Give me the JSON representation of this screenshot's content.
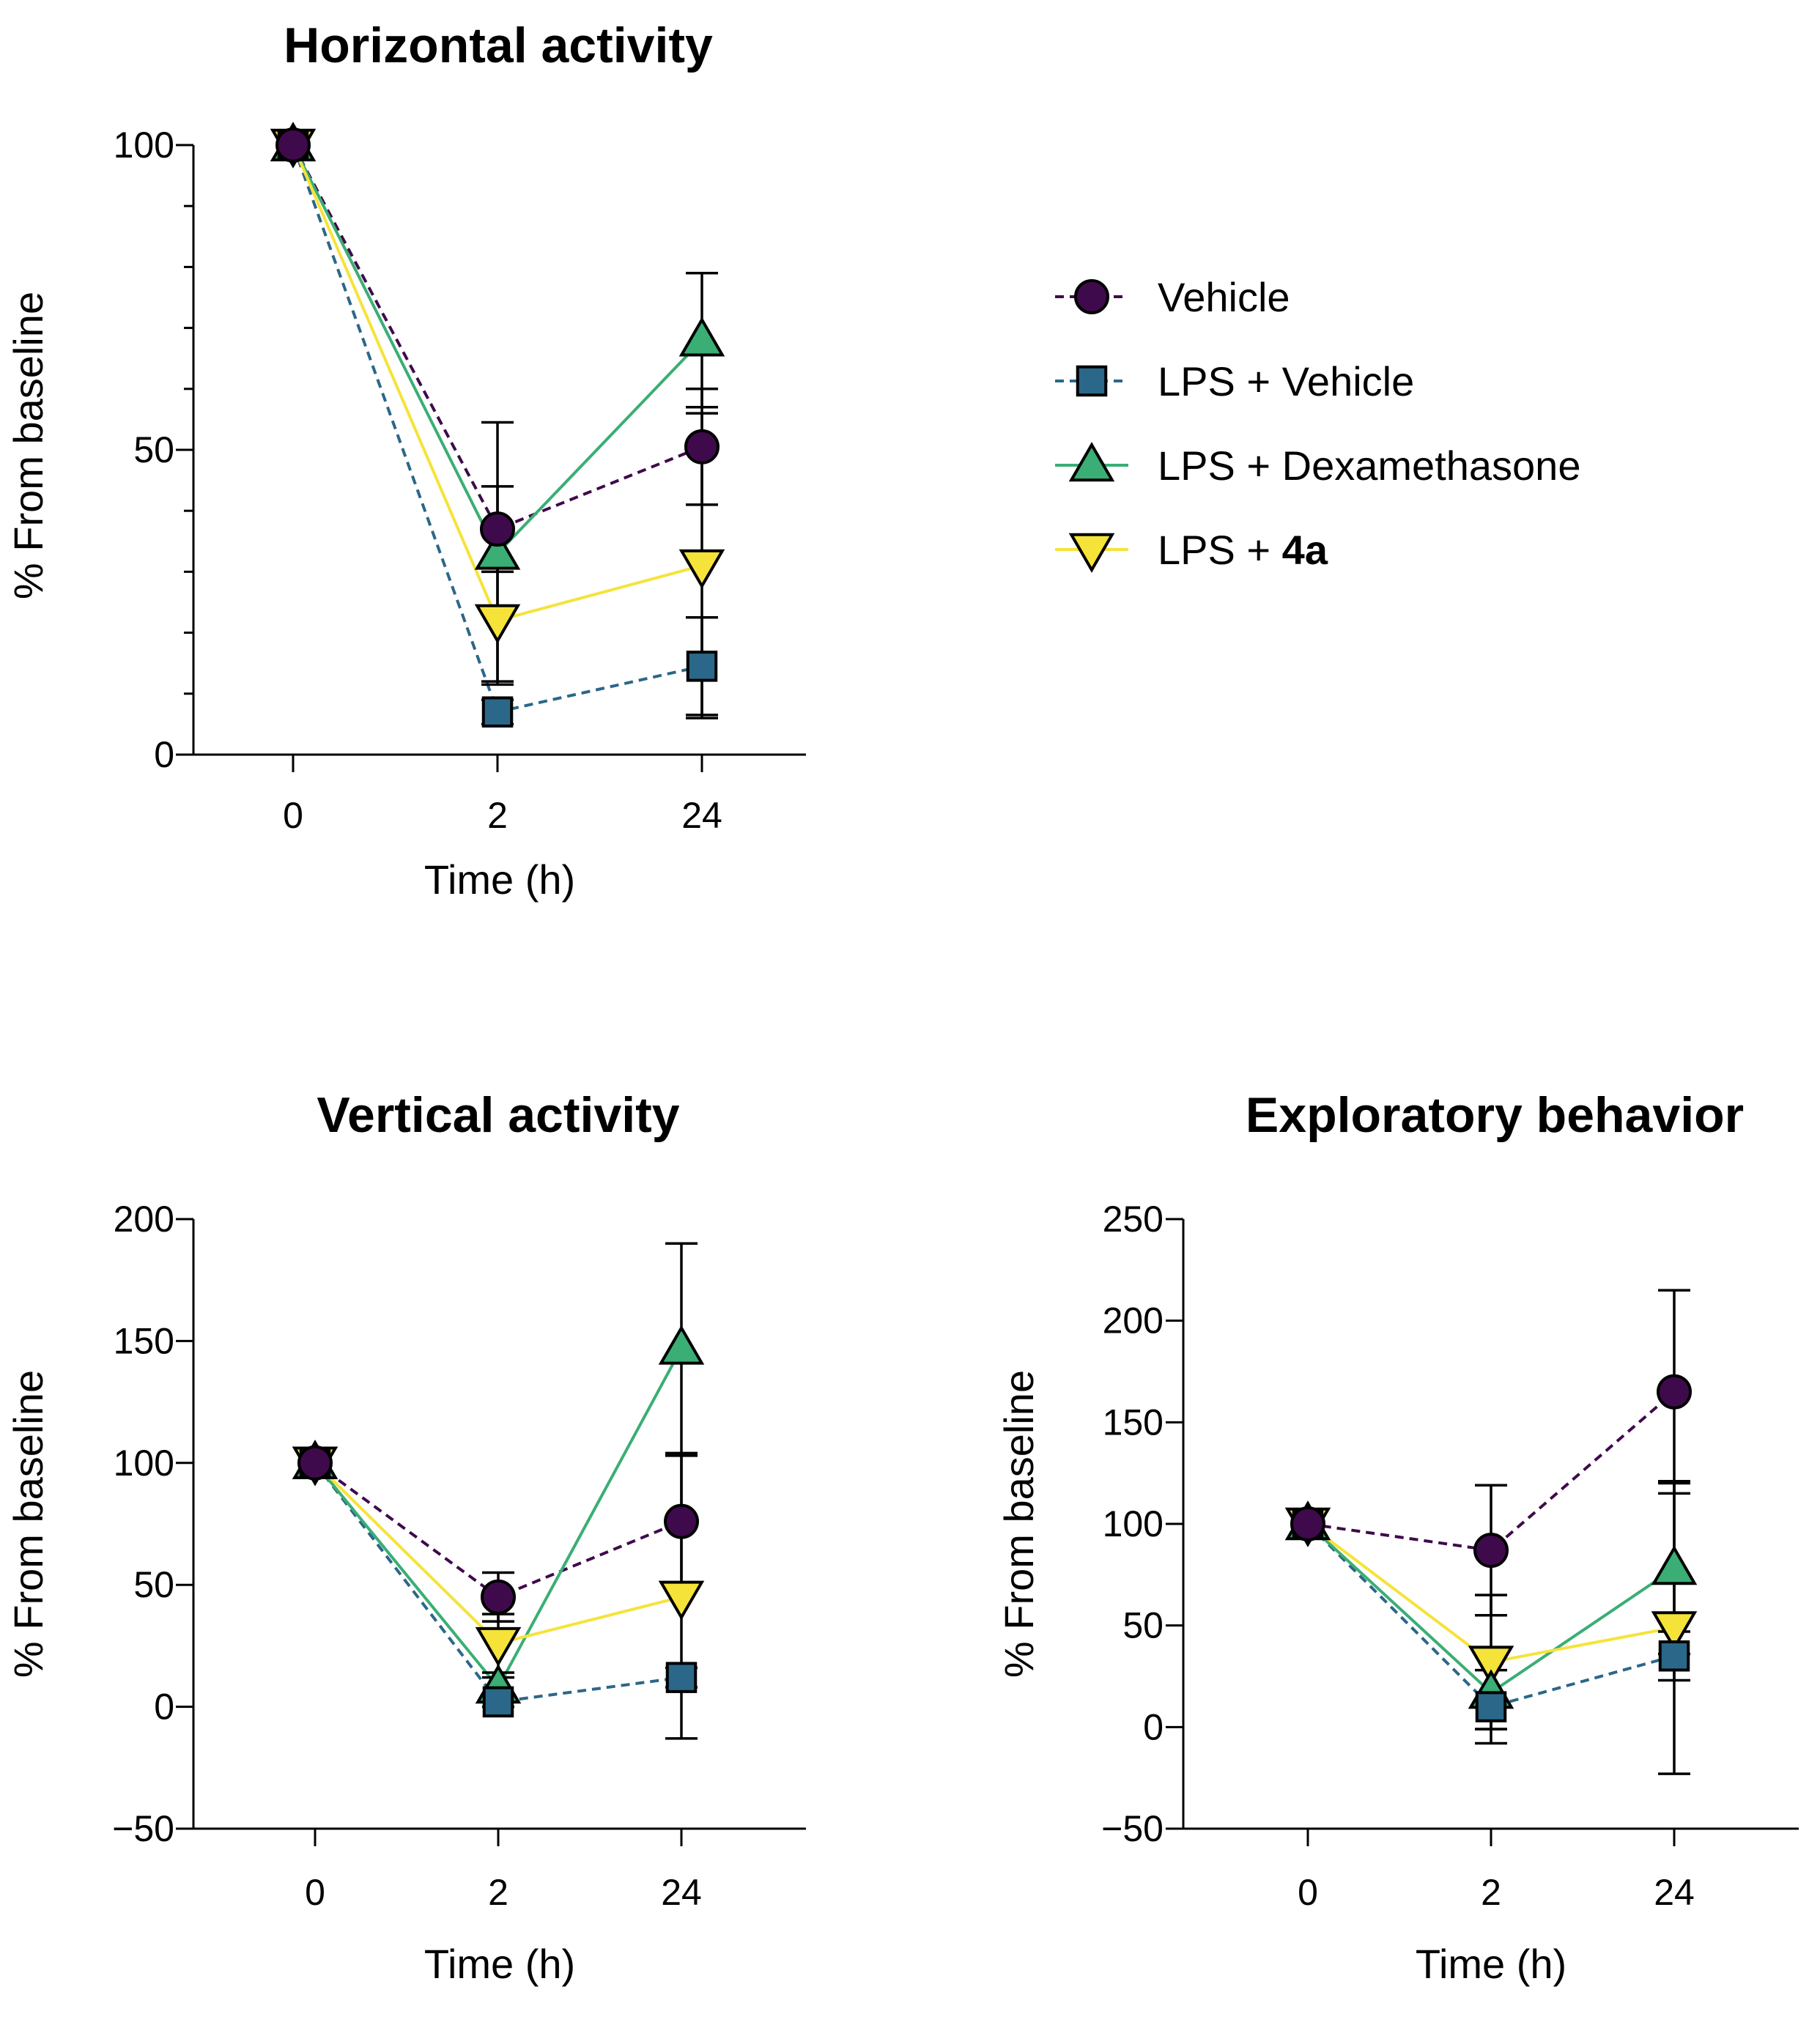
{
  "legend": {
    "placement": "right of top chart",
    "items": [
      {
        "key": "vehicle",
        "label": "Vehicle",
        "bold": ""
      },
      {
        "key": "lps_vehicle",
        "label": "LPS + Vehicle",
        "bold": ""
      },
      {
        "key": "lps_dex",
        "label": "LPS + Dexamethasone",
        "bold": ""
      },
      {
        "key": "lps_4a",
        "label": "LPS + ",
        "bold": "4a"
      }
    ]
  },
  "styles": {
    "vehicle": {
      "color": "#3f0a4b",
      "marker": "circle",
      "dashed": true
    },
    "lps_vehicle": {
      "color": "#2b6788",
      "marker": "square",
      "dashed": true
    },
    "lps_dex": {
      "color": "#3aae74",
      "marker": "triangle-up",
      "dashed": false
    },
    "lps_4a": {
      "color": "#f5e33a",
      "marker": "triangle-down",
      "dashed": false
    }
  },
  "chart_data": [
    {
      "id": "horizontal",
      "type": "line",
      "title": "Horizontal activity",
      "xlabel": "Time (h)",
      "ylabel": "% From baseline",
      "categories": [
        "0",
        "2",
        "24"
      ],
      "ylim": [
        0,
        100
      ],
      "yticks": [
        0,
        50,
        100
      ],
      "yminor": [
        10,
        20,
        30,
        40,
        60,
        70,
        80,
        90
      ],
      "series": [
        {
          "key": "vehicle",
          "name": "Vehicle",
          "values": [
            100,
            37,
            50.5
          ],
          "err": [
            0,
            7,
            9.5
          ]
        },
        {
          "key": "lps_vehicle",
          "name": "LPS + Vehicle",
          "values": [
            100,
            7,
            14.5
          ],
          "err": [
            0,
            2,
            8
          ]
        },
        {
          "key": "lps_dex",
          "name": "LPS + Dexamethasone",
          "values": [
            100,
            33,
            68
          ],
          "err": [
            0,
            21.5,
            11
          ]
        },
        {
          "key": "lps_4a",
          "name": "LPS + 4a",
          "values": [
            100,
            22,
            31
          ],
          "err": [
            0,
            10,
            25
          ]
        }
      ]
    },
    {
      "id": "vertical",
      "type": "line",
      "title": "Vertical activity",
      "xlabel": "Time (h)",
      "ylabel": "% From baseline",
      "categories": [
        "0",
        "2",
        "24"
      ],
      "ylim": [
        -50,
        200
      ],
      "yticks": [
        -50,
        0,
        50,
        100,
        150,
        200
      ],
      "yminor": [],
      "series": [
        {
          "key": "vehicle",
          "name": "Vehicle",
          "values": [
            100,
            45,
            76
          ],
          "err": [
            0,
            10,
            28
          ]
        },
        {
          "key": "lps_vehicle",
          "name": "LPS + Vehicle",
          "values": [
            100,
            2,
            12
          ],
          "err": [
            0,
            2,
            4
          ]
        },
        {
          "key": "lps_dex",
          "name": "LPS + Dexamethasone",
          "values": [
            100,
            8,
            147
          ],
          "err": [
            0,
            4,
            43
          ]
        },
        {
          "key": "lps_4a",
          "name": "LPS + 4a",
          "values": [
            100,
            26,
            45
          ],
          "err": [
            0,
            12,
            58
          ]
        }
      ]
    },
    {
      "id": "exploratory",
      "type": "line",
      "title": "Exploratory behavior",
      "xlabel": "Time (h)",
      "ylabel": "% From baseline",
      "categories": [
        "0",
        "2",
        "24"
      ],
      "ylim": [
        -50,
        250
      ],
      "yticks": [
        -50,
        0,
        50,
        100,
        150,
        200,
        250
      ],
      "yminor": [],
      "series": [
        {
          "key": "vehicle",
          "name": "Vehicle",
          "values": [
            100,
            87,
            165
          ],
          "err": [
            0,
            32,
            50
          ]
        },
        {
          "key": "lps_vehicle",
          "name": "LPS + Vehicle",
          "values": [
            100,
            10,
            35
          ],
          "err": [
            0,
            18,
            12
          ]
        },
        {
          "key": "lps_dex",
          "name": "LPS + Dexamethasone",
          "values": [
            100,
            17,
            78
          ],
          "err": [
            0,
            18,
            42
          ]
        },
        {
          "key": "lps_4a",
          "name": "LPS + 4a",
          "values": [
            100,
            32,
            49
          ],
          "err": [
            0,
            33,
            72
          ]
        }
      ]
    }
  ]
}
